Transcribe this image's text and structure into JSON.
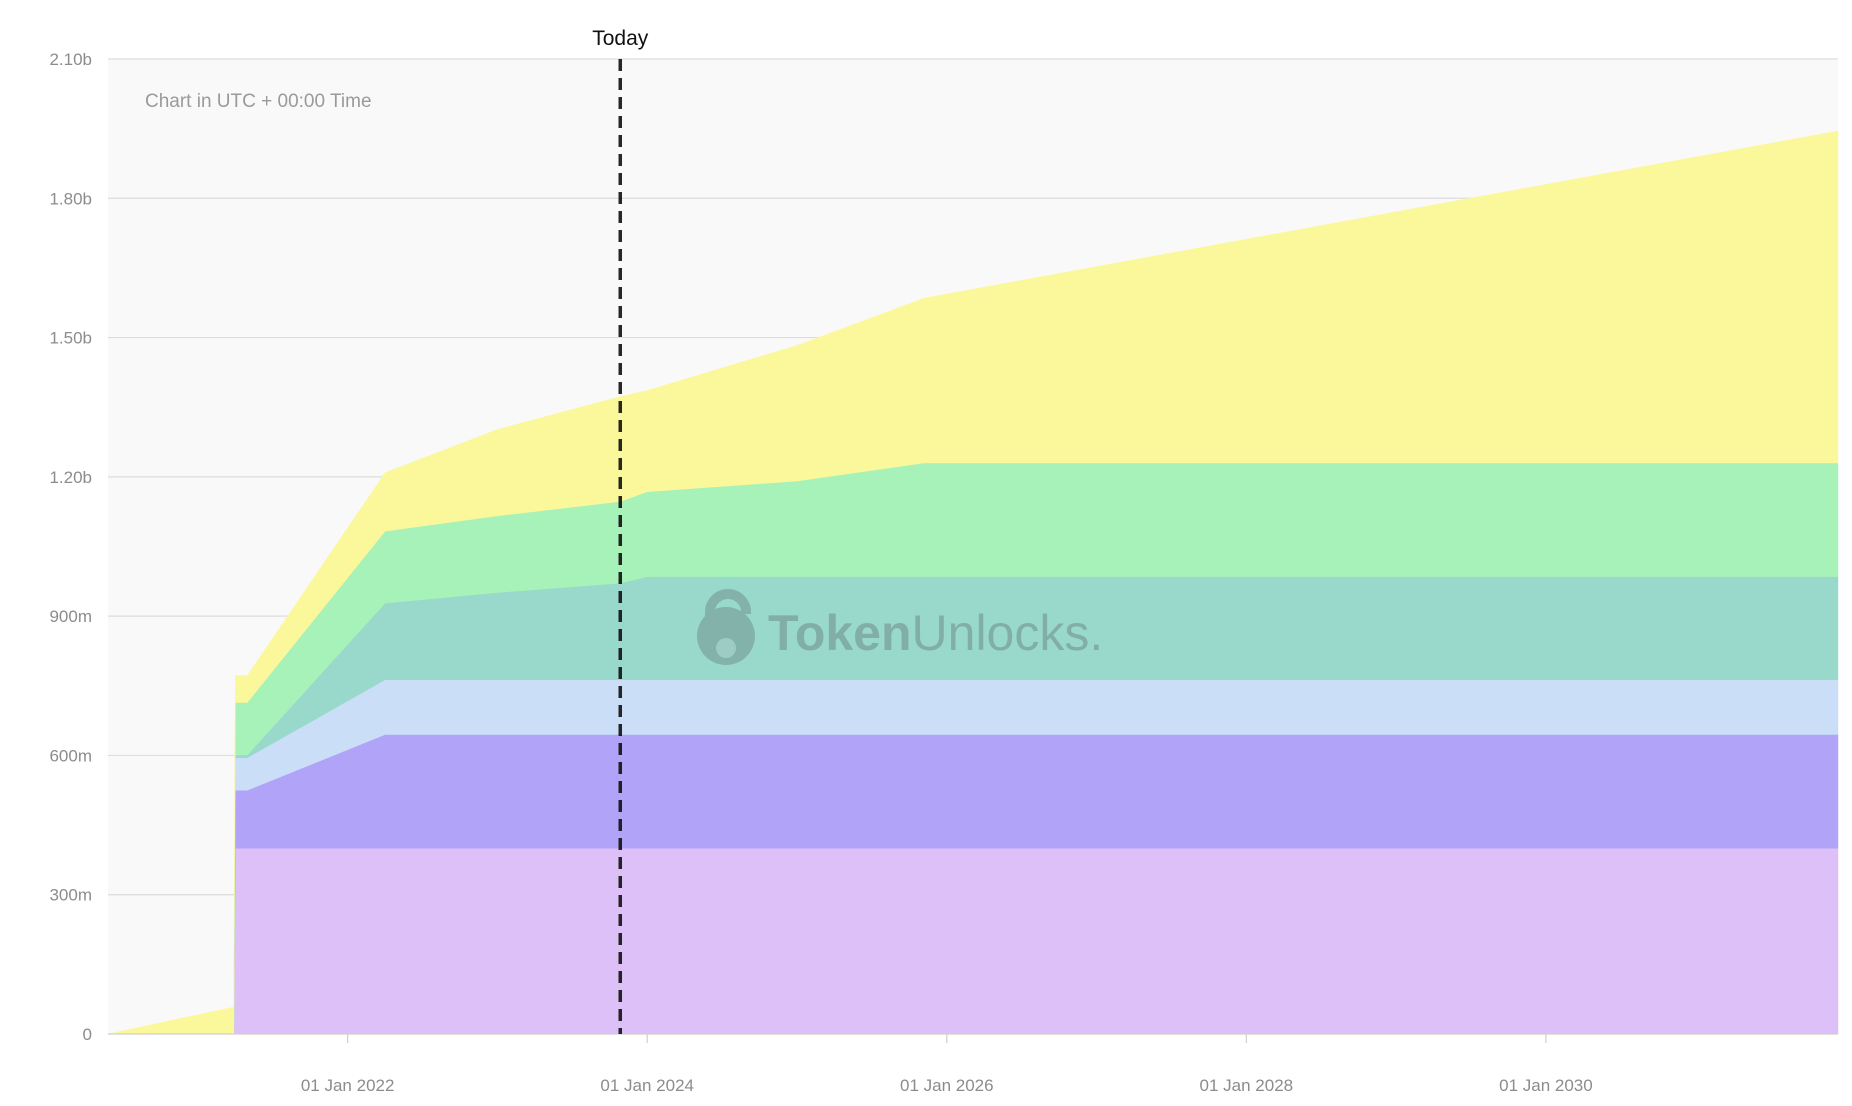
{
  "chart_data": {
    "type": "area",
    "stacked": true,
    "x_unit": "year (decimal)",
    "xlim": [
      2020.4,
      2031.95
    ],
    "ylim": [
      0,
      2100000000
    ],
    "note": "Chart in UTC + 00:00 Time",
    "today_label": "Today",
    "today_x": 2023.82,
    "watermark": {
      "bold": "Token",
      "light": "Unlocks."
    },
    "grid": true,
    "y_ticks": [
      {
        "value": 0,
        "label": "0"
      },
      {
        "value": 300000000,
        "label": "300m"
      },
      {
        "value": 600000000,
        "label": "600m"
      },
      {
        "value": 900000000,
        "label": "900m"
      },
      {
        "value": 1200000000,
        "label": "1.20b"
      },
      {
        "value": 1500000000,
        "label": "1.50b"
      },
      {
        "value": 1800000000,
        "label": "1.80b"
      },
      {
        "value": 2100000000,
        "label": "2.10b"
      }
    ],
    "x_ticks": [
      {
        "value": 2022.0,
        "label": "01 Jan 2022"
      },
      {
        "value": 2024.0,
        "label": "01 Jan 2024"
      },
      {
        "value": 2026.0,
        "label": "01 Jan 2026"
      },
      {
        "value": 2028.0,
        "label": "01 Jan 2028"
      },
      {
        "value": 2030.0,
        "label": "01 Jan 2030"
      }
    ],
    "series": [
      {
        "color": "#dcc0f7",
        "points": [
          [
            2021.24,
            0
          ],
          [
            2021.25,
            400000000
          ],
          [
            2031.95,
            400000000
          ]
        ]
      },
      {
        "color": "#b1a3f7",
        "points": [
          [
            2021.24,
            0
          ],
          [
            2021.25,
            125000000
          ],
          [
            2021.33,
            125000000
          ],
          [
            2022.25,
            245000000
          ],
          [
            2031.95,
            245000000
          ]
        ]
      },
      {
        "color": "#cbdef7",
        "points": [
          [
            2021.24,
            0
          ],
          [
            2021.25,
            70000000
          ],
          [
            2021.33,
            70000000
          ],
          [
            2022.25,
            118000000
          ],
          [
            2031.95,
            118000000
          ]
        ]
      },
      {
        "color": "#99d9cc",
        "points": [
          [
            2021.24,
            0
          ],
          [
            2021.25,
            6000000
          ],
          [
            2021.33,
            6000000
          ],
          [
            2022.25,
            165000000
          ],
          [
            2023.0,
            188000000
          ],
          [
            2023.82,
            208000000
          ],
          [
            2024.0,
            222000000
          ],
          [
            2031.95,
            222000000
          ]
        ]
      },
      {
        "color": "#a7f2b9",
        "points": [
          [
            2021.24,
            0
          ],
          [
            2021.25,
            113000000
          ],
          [
            2021.33,
            113000000
          ],
          [
            2022.25,
            155000000
          ],
          [
            2023.0,
            165000000
          ],
          [
            2023.82,
            176000000
          ],
          [
            2024.0,
            183000000
          ],
          [
            2025.0,
            206000000
          ],
          [
            2025.85,
            245000000
          ],
          [
            2031.95,
            245000000
          ]
        ]
      },
      {
        "color": "#fbf89c",
        "points": [
          [
            2020.4,
            0
          ],
          [
            2021.24,
            58000000
          ],
          [
            2021.25,
            58000000
          ],
          [
            2021.33,
            58000000
          ],
          [
            2022.25,
            126000000
          ],
          [
            2023.0,
            186000000
          ],
          [
            2023.82,
            226000000
          ],
          [
            2024.0,
            218000000
          ],
          [
            2025.85,
            355000000
          ],
          [
            2031.95,
            715000000
          ]
        ]
      }
    ]
  }
}
